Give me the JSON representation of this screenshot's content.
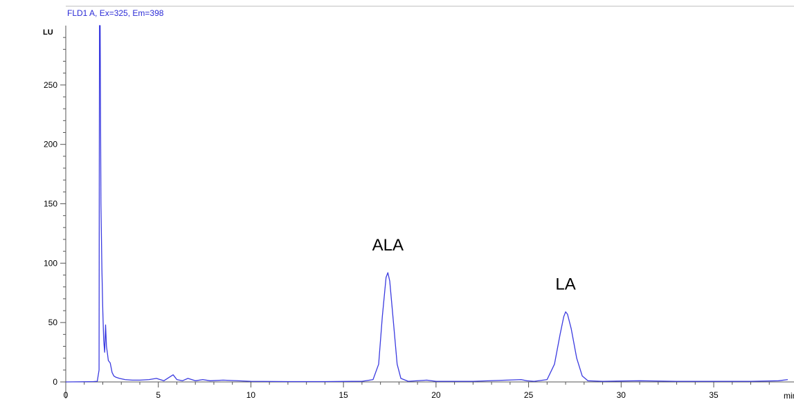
{
  "signal_label": "FLD1 A, Ex=325, Em=398",
  "colors": {
    "trace": "#3a3ae0",
    "signal_text": "#2a2ad6",
    "axis": "#555555",
    "background": "#ffffff"
  },
  "chart_data": {
    "type": "line",
    "ylabel": "LU",
    "xlabel": "min",
    "xlim": [
      0,
      39
    ],
    "ylim": [
      0,
      300
    ],
    "x_ticks": [
      0,
      5,
      10,
      15,
      20,
      25,
      30,
      35
    ],
    "y_ticks": [
      0,
      50,
      100,
      150,
      200,
      250
    ],
    "grid": false,
    "series": [
      {
        "x": [
          0,
          1.5,
          1.7,
          1.8,
          1.82,
          1.86,
          1.9,
          1.95,
          2.0,
          2.05,
          2.1,
          2.15,
          2.2,
          2.25,
          2.3,
          2.4,
          2.5,
          2.6,
          2.7,
          2.9,
          3.2,
          3.6,
          4.0,
          4.5,
          4.9,
          5.1,
          5.3,
          5.6,
          5.8,
          6.0,
          6.3,
          6.6,
          7.0,
          7.4,
          7.8,
          8.5,
          10,
          12,
          14,
          16,
          16.6,
          16.9,
          17.1,
          17.3,
          17.4,
          17.5,
          17.7,
          17.9,
          18.1,
          18.5,
          19.5,
          20,
          22,
          24.6,
          24.9,
          25.3,
          26.0,
          26.4,
          26.7,
          26.9,
          27.0,
          27.1,
          27.3,
          27.6,
          27.9,
          28.2,
          29,
          31,
          33,
          35,
          37,
          38.5,
          39
        ],
        "y": [
          0,
          0.3,
          0.5,
          10,
          300,
          300,
          150,
          95,
          60,
          35,
          25,
          48,
          30,
          24,
          18,
          16,
          8,
          5,
          4,
          3,
          2,
          1.5,
          1.5,
          2,
          3,
          2,
          1,
          4,
          6,
          2,
          1,
          3,
          1,
          2,
          1,
          1.5,
          0.5,
          0.3,
          0.3,
          0.5,
          2,
          15,
          55,
          88,
          92,
          85,
          50,
          15,
          3,
          0.5,
          1.5,
          0.5,
          0.5,
          2,
          1,
          0.5,
          2,
          15,
          40,
          55,
          59,
          57,
          45,
          20,
          5,
          1,
          0.5,
          1,
          0.5,
          0.5,
          0.5,
          1,
          2
        ]
      }
    ],
    "annotations": [
      {
        "text": "ALA",
        "x": 17.4,
        "y": 92
      },
      {
        "text": "LA",
        "x": 27.0,
        "y": 59
      }
    ]
  }
}
